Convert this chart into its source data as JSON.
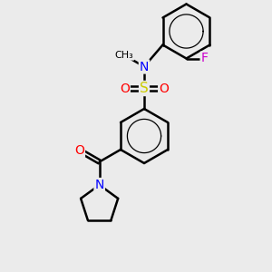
{
  "bg_color": "#ebebeb",
  "atom_colors": {
    "C": "#000000",
    "N": "#0000ff",
    "O": "#ff0000",
    "S": "#cccc00",
    "F": "#cc00cc",
    "H": "#000000"
  },
  "bond_color": "#000000",
  "bond_width": 1.8,
  "figsize": [
    3.0,
    3.0
  ],
  "dpi": 100,
  "xlim": [
    0,
    10
  ],
  "ylim": [
    0,
    10
  ]
}
